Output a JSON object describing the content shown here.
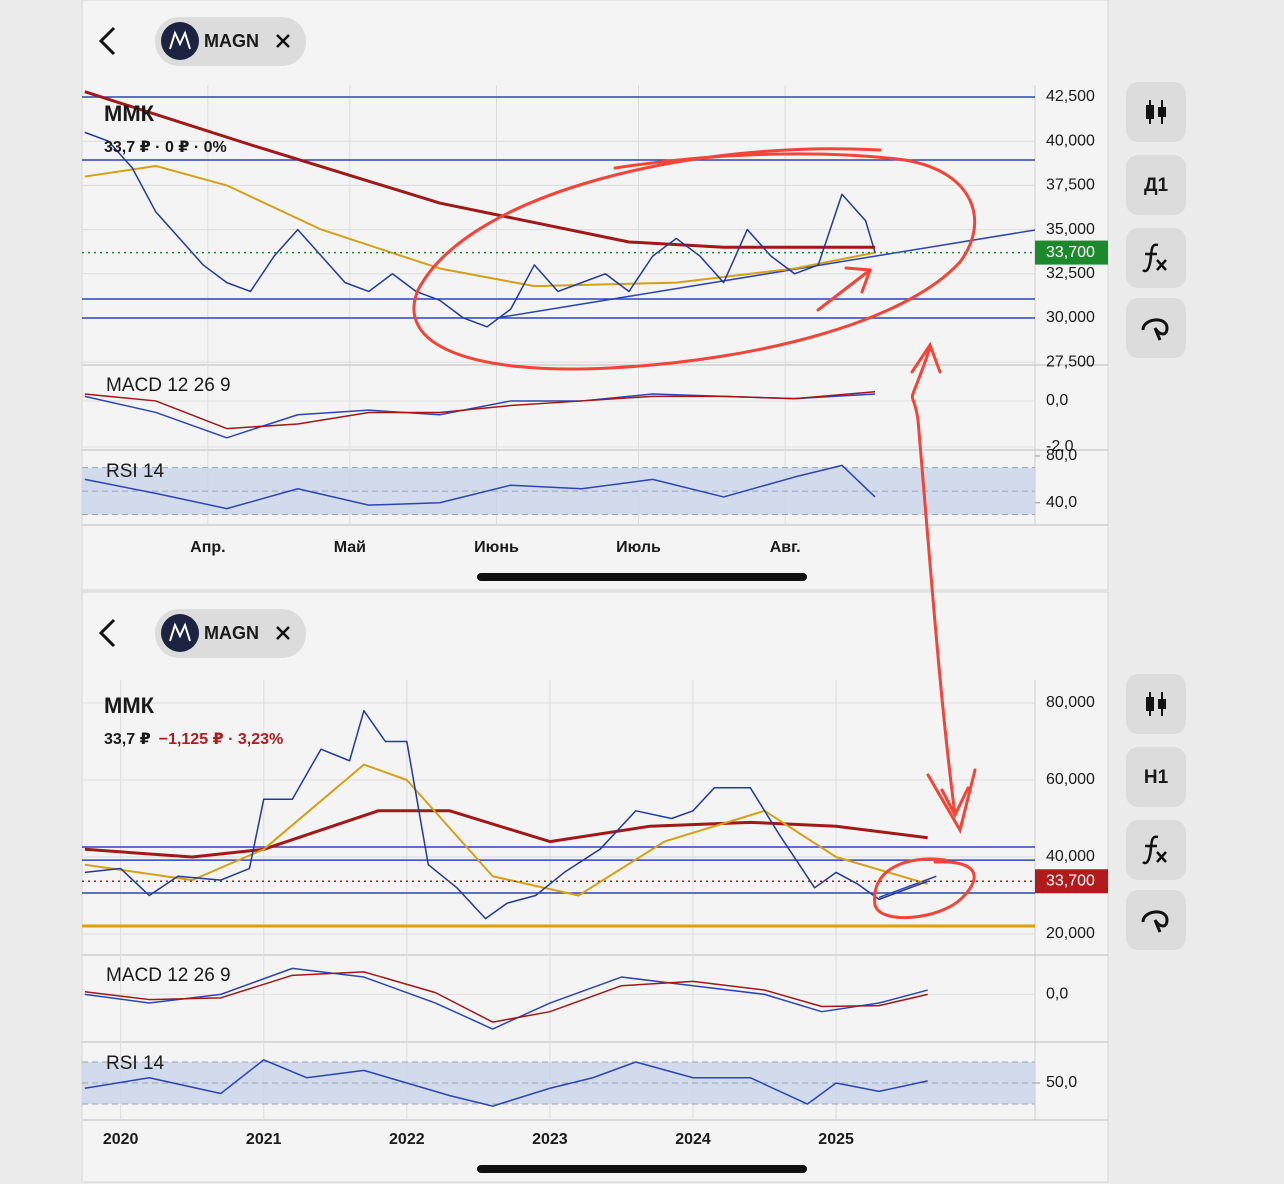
{
  "screens": [
    {
      "ticker": "MAGN",
      "timeframe": "Д1",
      "title": "ММК",
      "quote": "33,7 ₽ · 0 ₽ · 0%",
      "chart_data": {
        "type": "line",
        "xlim": [
          64.4,
          265.8
        ],
        "xticks": [
          {
            "value": 91,
            "label": "Апр."
          },
          {
            "value": 121,
            "label": "Май"
          },
          {
            "value": 152,
            "label": "Июнь"
          },
          {
            "value": 182,
            "label": "Июль"
          },
          {
            "value": 213,
            "label": "Авг."
          }
        ],
        "ylim": [
          27340,
          43180
        ],
        "yticks": [
          {
            "value": 27500,
            "label": "27,500"
          },
          {
            "value": 30000,
            "label": "30,000"
          },
          {
            "value": 32500,
            "label": "32,500"
          },
          {
            "value": 35000,
            "label": "35,000"
          },
          {
            "value": 37500,
            "label": "37,500"
          },
          {
            "value": 40000,
            "label": "40,000"
          },
          {
            "value": 42500,
            "label": "42,500"
          }
        ],
        "last_price": {
          "value": 33700,
          "label": "33,700",
          "color": "#1c8a2c"
        },
        "levels": [
          {
            "value": 42500,
            "color": "#2b45b5"
          },
          {
            "value": 38937,
            "color": "#2b45b5"
          },
          {
            "value": 31075,
            "color": "#2b45b5"
          },
          {
            "value": 30000,
            "color": "#2b45b5"
          }
        ],
        "trendline": {
          "x": [
            152,
            265.8
          ],
          "values": [
            30000,
            34977
          ],
          "color": "#2b45b5"
        },
        "series": [
          {
            "color": "#a01818",
            "line_width": 3,
            "x": [
              65,
              100,
              140,
              180,
              200,
              232
            ],
            "values": [
              42800,
              39800,
              36500,
              34300,
              34000,
              34000
            ]
          },
          {
            "color": "#d4a017",
            "line_width": 2,
            "x": [
              65,
              80,
              95,
              115,
              140,
              160,
              190,
              215,
              232
            ],
            "values": [
              38000,
              38600,
              37500,
              35000,
              32800,
              31800,
              32000,
              32800,
              33700
            ]
          },
          {
            "color": "#203a9c",
            "line_width": 1.5,
            "x": [
              65,
              70,
              75,
              80,
              85,
              90,
              95,
              100,
              105,
              110,
              115,
              120,
              125,
              130,
              135,
              140,
              145,
              150,
              155,
              160,
              165,
              170,
              175,
              180,
              185,
              190,
              195,
              200,
              205,
              210,
              215,
              220,
              225,
              230,
              232
            ],
            "values": [
              40500,
              40000,
              38500,
              36000,
              34500,
              33000,
              32000,
              31500,
              33500,
              35000,
              33500,
              32000,
              31500,
              32500,
              31500,
              31000,
              30000,
              29500,
              30500,
              33000,
              31500,
              32000,
              32500,
              31500,
              33500,
              34500,
              33500,
              32000,
              35000,
              33500,
              32500,
              33000,
              37000,
              35500,
              33700
            ]
          }
        ],
        "macd": {
          "label": "MACD 12 26 9",
          "ylim": [
            -2.13,
            1.43
          ],
          "yticks": [
            {
              "value": 0,
              "label": "0,0"
            },
            {
              "value": -2,
              "label": "-2,0"
            }
          ],
          "series": [
            {
              "color": "#2b45b5",
              "x": [
                65,
                80,
                95,
                110,
                125,
                140,
                155,
                170,
                185,
                200,
                215,
                232
              ],
              "values": [
                0.2,
                -0.5,
                -1.6,
                -0.6,
                -0.4,
                -0.6,
                0,
                0,
                0.3,
                0.2,
                0.1,
                0.3
              ]
            },
            {
              "color": "#a01818",
              "x": [
                65,
                80,
                95,
                110,
                125,
                140,
                155,
                170,
                185,
                200,
                215,
                232
              ],
              "values": [
                0.3,
                0,
                -1.2,
                -1,
                -0.5,
                -0.5,
                -0.2,
                0,
                0.2,
                0.2,
                0.1,
                0.4
              ]
            }
          ]
        },
        "rsi": {
          "label": "RSI 14",
          "ylim": [
            21,
            83.4
          ],
          "band": [
            30,
            70
          ],
          "midline": 50,
          "yticks": [
            {
              "value": 80,
              "label": "80,0"
            },
            {
              "value": 40,
              "label": "40,0"
            }
          ],
          "series": [
            {
              "color": "#2b45b5",
              "x": [
                65,
                80,
                95,
                110,
                125,
                140,
                155,
                170,
                185,
                200,
                215,
                225,
                232
              ],
              "values": [
                60,
                48,
                35,
                52,
                38,
                40,
                55,
                52,
                60,
                45,
                62,
                72,
                45
              ]
            }
          ]
        }
      }
    },
    {
      "ticker": "MAGN",
      "timeframe": "H1",
      "title": "ММК",
      "quote": "33,7 ₽",
      "change": "−1,125 ₽ · 3,23%",
      "chart_data": {
        "type": "line",
        "xlim": [
          2019.73,
          2026.39
        ],
        "xticks": [
          2020,
          2021,
          2022,
          2023,
          2024,
          2025
        ],
        "ylim": [
          14550,
          85970
        ],
        "yticks": [
          {
            "value": 20000,
            "label": "20,000"
          },
          {
            "value": 40000,
            "label": "40,000"
          },
          {
            "value": 60000,
            "label": "60,000"
          },
          {
            "value": 80000,
            "label": "80,000"
          }
        ],
        "last_price": {
          "value": 33700,
          "label": "33,700",
          "color": "#b01c1c"
        },
        "levels": [
          {
            "value": 42600,
            "color": "#2b45b5"
          },
          {
            "value": 39200,
            "color": "#2b45b5"
          },
          {
            "value": 30650,
            "color": "#2b45b5"
          },
          {
            "value": 22080,
            "color": "#e0a000"
          }
        ],
        "trendline": {
          "x": [
            2025.3,
            2025.7
          ],
          "values": [
            29500,
            35000
          ],
          "color": "#2b45b5"
        },
        "series": [
          {
            "color": "#a01818",
            "line_width": 3,
            "x": [
              2019.75,
              2020.5,
              2021.0,
              2021.8,
              2022.3,
              2023.0,
              2023.7,
              2024.4,
              2025.0,
              2025.64
            ],
            "values": [
              42000,
              40000,
              42000,
              52000,
              52000,
              44000,
              48000,
              49000,
              48000,
              45000
            ]
          },
          {
            "color": "#d4a017",
            "line_width": 2,
            "x": [
              2019.75,
              2020.5,
              2021.0,
              2021.7,
              2022.0,
              2022.6,
              2023.2,
              2023.8,
              2024.5,
              2025.0,
              2025.64
            ],
            "values": [
              38000,
              34000,
              42000,
              64000,
              60000,
              35000,
              30000,
              44000,
              52000,
              40000,
              33000
            ]
          },
          {
            "color": "#203a9c",
            "line_width": 1.5,
            "x": [
              2019.75,
              2020.0,
              2020.2,
              2020.4,
              2020.7,
              2020.9,
              2021.0,
              2021.2,
              2021.4,
              2021.6,
              2021.7,
              2021.85,
              2022.0,
              2022.15,
              2022.35,
              2022.55,
              2022.7,
              2022.9,
              2023.1,
              2023.35,
              2023.6,
              2023.85,
              2024.0,
              2024.15,
              2024.4,
              2024.6,
              2024.85,
              2025.0,
              2025.15,
              2025.3,
              2025.64
            ],
            "values": [
              36000,
              37000,
              30000,
              35000,
              34000,
              37000,
              55000,
              55000,
              68000,
              65000,
              78000,
              70000,
              70000,
              38000,
              32000,
              24000,
              28000,
              30000,
              36000,
              42000,
              52000,
              50000,
              52000,
              58000,
              58000,
              46000,
              32000,
              36000,
              33000,
              29000,
              33700
            ]
          }
        ],
        "macd": {
          "label": "MACD 12 26 9",
          "ylim": [
            -5.5,
            4.2
          ],
          "yticks": [
            {
              "value": 0,
              "label": "0,0"
            }
          ],
          "series": [
            {
              "color": "#2b45b5",
              "x": [
                2019.75,
                2020.2,
                2020.7,
                2021.2,
                2021.7,
                2022.2,
                2022.6,
                2023.0,
                2023.5,
                2024.0,
                2024.5,
                2024.9,
                2025.3,
                2025.64
              ],
              "values": [
                0,
                -1,
                0,
                3,
                2,
                -1,
                -4,
                -1,
                2,
                1,
                0,
                -2,
                -1,
                0.5
              ]
            },
            {
              "color": "#a01818",
              "x": [
                2019.75,
                2020.2,
                2020.7,
                2021.2,
                2021.7,
                2022.2,
                2022.6,
                2023.0,
                2023.5,
                2024.0,
                2024.5,
                2024.9,
                2025.3,
                2025.64
              ],
              "values": [
                0.3,
                -0.6,
                -0.4,
                2.2,
                2.6,
                0.2,
                -3.2,
                -2,
                1,
                1.5,
                0.5,
                -1.4,
                -1.3,
                0
              ]
            }
          ]
        },
        "rsi": {
          "label": "RSI 14",
          "ylim": [
            14.8,
            87.1
          ],
          "band": [
            30,
            70
          ],
          "midline": 50,
          "yticks": [
            {
              "value": 50,
              "label": "50,0"
            }
          ],
          "series": [
            {
              "color": "#2b45b5",
              "x": [
                2019.75,
                2020.2,
                2020.7,
                2021.0,
                2021.3,
                2021.7,
                2022.0,
                2022.3,
                2022.6,
                2023.0,
                2023.3,
                2023.6,
                2024.0,
                2024.4,
                2024.8,
                2025.0,
                2025.3,
                2025.64
              ],
              "values": [
                45,
                55,
                40,
                72,
                55,
                62,
                50,
                38,
                28,
                45,
                55,
                70,
                55,
                55,
                30,
                50,
                42,
                52
              ]
            }
          ]
        }
      }
    }
  ]
}
